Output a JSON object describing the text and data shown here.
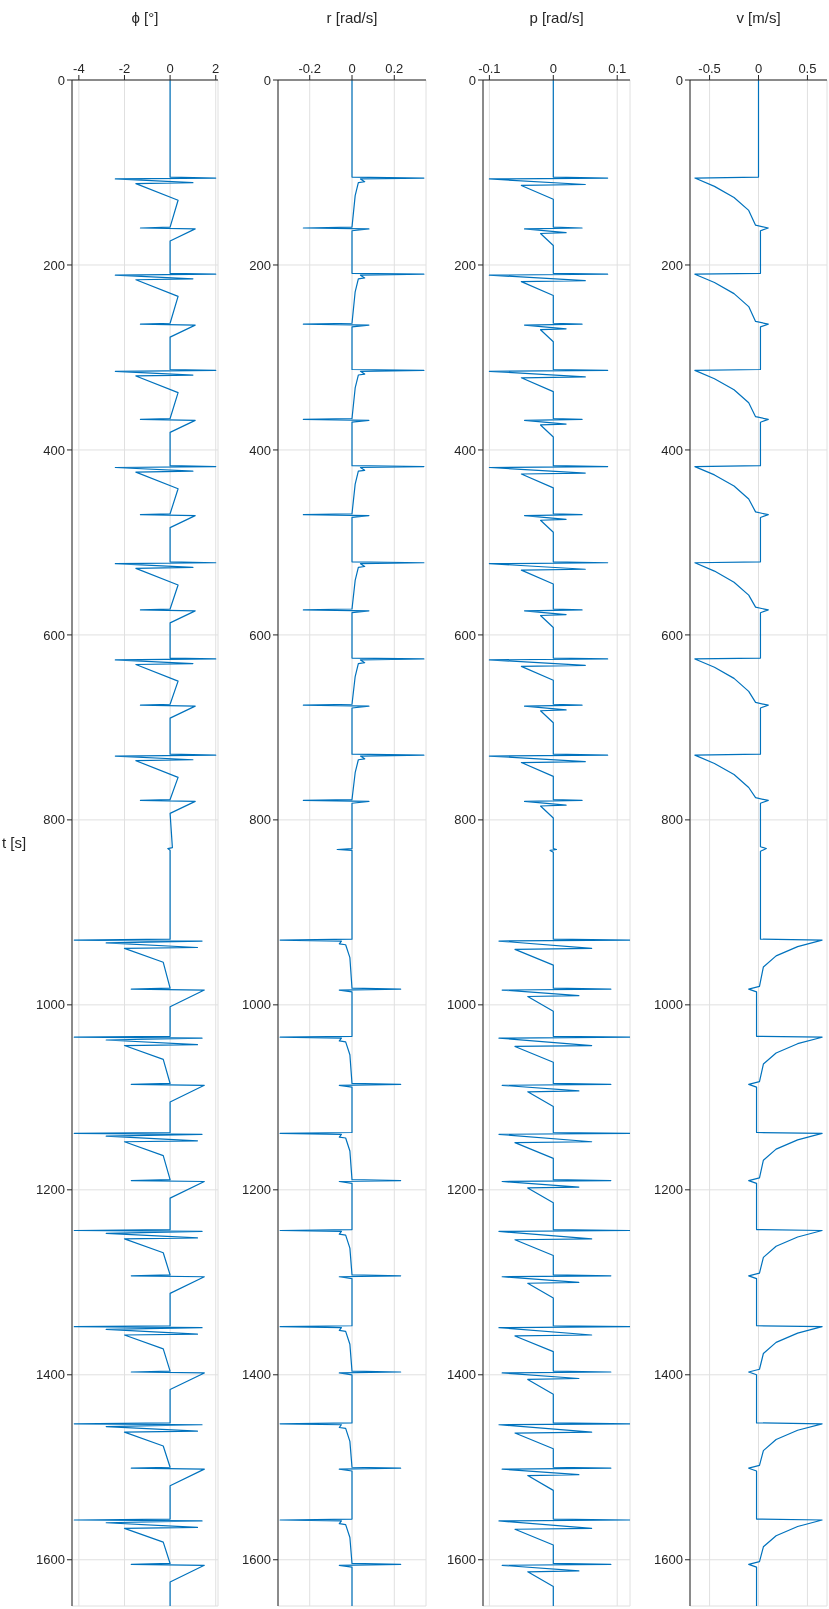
{
  "chart_data": [
    {
      "type": "line",
      "xlabel": "v [m/s]",
      "ylim": [
        1650,
        0
      ],
      "yticks": [
        0,
        200,
        400,
        600,
        800,
        1000,
        1200,
        1400,
        1600
      ],
      "xlim": [
        -0.7,
        0.7
      ],
      "xticks": [
        -0.5,
        0,
        0.5
      ],
      "grid": true,
      "series": [
        {
          "color": "#0072bd",
          "values": [
            0,
            105,
            106,
            115,
            127,
            141,
            157,
            160,
            163,
            209,
            210,
            219,
            231,
            245,
            261,
            264,
            267,
            313,
            314,
            323,
            335,
            349,
            364,
            367,
            370,
            417,
            418,
            427,
            439,
            453,
            467,
            470,
            473,
            521,
            522,
            531,
            543,
            557,
            570,
            573,
            576,
            625,
            626,
            635,
            647,
            661,
            673,
            676,
            679,
            729,
            730,
            739,
            751,
            765,
            776,
            779,
            782,
            829,
            831,
            834,
            929,
            930,
            937,
            947,
            959,
            980,
            983,
            986,
            1034,
            1035,
            1042,
            1052,
            1064,
            1083,
            1086,
            1089,
            1138,
            1139,
            1146,
            1156,
            1168,
            1187,
            1190,
            1193,
            1243,
            1244,
            1251,
            1261,
            1273,
            1290,
            1293,
            1296,
            1347,
            1348,
            1355,
            1365,
            1377,
            1394,
            1397,
            1400,
            1452,
            1453,
            1460,
            1470,
            1482,
            1498,
            1501,
            1504,
            1556,
            1557,
            1564,
            1574,
            1586,
            1602,
            1605,
            1608,
            1650
          ],
          "x": [
            0,
            0,
            -0.65,
            -0.45,
            -0.25,
            -0.1,
            -0.03,
            0.1,
            0.02,
            0.02,
            -0.65,
            -0.45,
            -0.25,
            -0.1,
            -0.03,
            0.1,
            0.02,
            0.02,
            -0.65,
            -0.45,
            -0.25,
            -0.1,
            -0.03,
            0.1,
            0.02,
            0.02,
            -0.65,
            -0.45,
            -0.25,
            -0.1,
            -0.03,
            0.1,
            0.02,
            0.02,
            -0.65,
            -0.45,
            -0.25,
            -0.1,
            -0.03,
            0.1,
            0.02,
            0.02,
            -0.65,
            -0.45,
            -0.25,
            -0.1,
            -0.03,
            0.1,
            0.02,
            0.02,
            -0.65,
            -0.45,
            -0.25,
            -0.1,
            -0.03,
            0.1,
            0.02,
            0.02,
            0.08,
            0.02,
            0.02,
            0.65,
            0.4,
            0.18,
            0.05,
            0.01,
            -0.1,
            -0.02,
            -0.02,
            0.65,
            0.4,
            0.18,
            0.05,
            0.01,
            -0.1,
            -0.02,
            -0.02,
            0.65,
            0.4,
            0.18,
            0.05,
            0.01,
            -0.1,
            -0.02,
            -0.02,
            0.65,
            0.4,
            0.18,
            0.05,
            0.01,
            -0.1,
            -0.02,
            -0.02,
            0.65,
            0.4,
            0.18,
            0.05,
            0.01,
            -0.1,
            -0.02,
            -0.02,
            0.65,
            0.4,
            0.18,
            0.05,
            0.01,
            -0.1,
            -0.02,
            -0.02,
            0.65,
            0.4,
            0.18,
            0.05,
            0.01,
            -0.1,
            -0.02,
            -0.02
          ]
        }
      ]
    },
    {
      "type": "line",
      "xlabel": "p [rad/s]",
      "ylim": [
        1650,
        0
      ],
      "yticks": [
        0,
        200,
        400,
        600,
        800,
        1000,
        1200,
        1400,
        1600
      ],
      "xlim": [
        -0.11,
        0.12
      ],
      "xticks": [
        -0.1,
        0,
        0.1
      ],
      "grid": true,
      "series": [
        {
          "color": "#0072bd",
          "values": [
            0,
            105,
            106,
            107,
            113,
            114,
            129,
            159,
            160,
            161,
            165,
            166,
            179,
            209,
            210,
            211,
            217,
            218,
            233,
            263,
            264,
            265,
            269,
            270,
            283,
            313,
            314,
            315,
            321,
            322,
            337,
            366,
            367,
            368,
            372,
            373,
            386,
            417,
            418,
            419,
            425,
            426,
            441,
            469,
            470,
            471,
            475,
            476,
            489,
            521,
            522,
            523,
            529,
            530,
            545,
            572,
            573,
            574,
            578,
            579,
            592,
            625,
            626,
            627,
            633,
            634,
            649,
            675,
            676,
            677,
            681,
            682,
            695,
            729,
            730,
            731,
            737,
            738,
            753,
            778,
            779,
            780,
            784,
            785,
            798,
            831,
            832,
            833,
            835,
            929,
            930,
            931,
            939,
            940,
            957,
            982,
            983,
            984,
            990,
            991,
            1007,
            1034,
            1035,
            1036,
            1044,
            1045,
            1062,
            1085,
            1086,
            1087,
            1093,
            1094,
            1110,
            1138,
            1139,
            1140,
            1148,
            1149,
            1166,
            1189,
            1190,
            1191,
            1197,
            1198,
            1214,
            1243,
            1244,
            1245,
            1253,
            1254,
            1271,
            1292,
            1293,
            1294,
            1300,
            1301,
            1317,
            1347,
            1348,
            1349,
            1357,
            1358,
            1375,
            1396,
            1397,
            1398,
            1404,
            1405,
            1421,
            1452,
            1453,
            1454,
            1462,
            1463,
            1480,
            1500,
            1501,
            1502,
            1508,
            1509,
            1525,
            1556,
            1557,
            1558,
            1566,
            1567,
            1584,
            1604,
            1605,
            1606,
            1612,
            1613,
            1629,
            1650
          ],
          "x": [
            0,
            0,
            0.085,
            -0.1,
            0.05,
            -0.05,
            0,
            0,
            0.045,
            -0.045,
            0.02,
            -0.02,
            0,
            0,
            0.085,
            -0.1,
            0.05,
            -0.05,
            0,
            0,
            0.045,
            -0.045,
            0.02,
            -0.02,
            0,
            0,
            0.085,
            -0.1,
            0.05,
            -0.05,
            0,
            0,
            0.045,
            -0.045,
            0.02,
            -0.02,
            0,
            0,
            0.085,
            -0.1,
            0.05,
            -0.05,
            0,
            0,
            0.045,
            -0.045,
            0.02,
            -0.02,
            0,
            0,
            0.085,
            -0.1,
            0.05,
            -0.05,
            0,
            0,
            0.045,
            -0.045,
            0.02,
            -0.02,
            0,
            0,
            0.085,
            -0.1,
            0.05,
            -0.05,
            0,
            0,
            0.045,
            -0.045,
            0.02,
            -0.02,
            0,
            0,
            0.085,
            -0.1,
            0.05,
            -0.05,
            0,
            0,
            0.045,
            -0.045,
            0.02,
            -0.02,
            0,
            0,
            0.005,
            -0.005,
            0,
            0,
            0.12,
            -0.085,
            0.06,
            -0.06,
            0,
            0,
            0.09,
            -0.08,
            0.04,
            -0.04,
            0,
            0,
            0.12,
            -0.085,
            0.06,
            -0.06,
            0,
            0,
            0.09,
            -0.08,
            0.04,
            -0.04,
            0,
            0,
            0.12,
            -0.085,
            0.06,
            -0.06,
            0,
            0,
            0.09,
            -0.08,
            0.04,
            -0.04,
            0,
            0,
            0.12,
            -0.085,
            0.06,
            -0.06,
            0,
            0,
            0.09,
            -0.08,
            0.04,
            -0.04,
            0,
            0,
            0.12,
            -0.085,
            0.06,
            -0.06,
            0,
            0,
            0.09,
            -0.08,
            0.04,
            -0.04,
            0,
            0,
            0.12,
            -0.085,
            0.06,
            -0.06,
            0,
            0,
            0.09,
            -0.08,
            0.04,
            -0.04,
            0,
            0,
            0.12,
            -0.085,
            0.06,
            -0.06,
            0,
            0,
            0.09,
            -0.08,
            0.04,
            -0.04,
            0,
            0
          ]
        }
      ]
    },
    {
      "type": "line",
      "xlabel": "r [rad/s]",
      "ylim": [
        1650,
        0
      ],
      "yticks": [
        0,
        200,
        400,
        600,
        800,
        1000,
        1200,
        1400,
        1600
      ],
      "xlim": [
        -0.35,
        0.35
      ],
      "xticks": [
        -0.2,
        0,
        0.2
      ],
      "grid": true,
      "series": [
        {
          "color": "#0072bd",
          "values": [
            0,
            105,
            106,
            107,
            110,
            111,
            125,
            159,
            160,
            161,
            163,
            209,
            210,
            211,
            214,
            215,
            229,
            263,
            264,
            265,
            267,
            313,
            314,
            315,
            318,
            319,
            333,
            366,
            367,
            368,
            370,
            417,
            418,
            419,
            422,
            423,
            437,
            469,
            470,
            471,
            473,
            521,
            522,
            523,
            526,
            527,
            541,
            572,
            573,
            574,
            576,
            625,
            626,
            627,
            630,
            631,
            645,
            675,
            676,
            677,
            679,
            729,
            730,
            731,
            734,
            735,
            749,
            778,
            779,
            780,
            782,
            831,
            832,
            833,
            929,
            930,
            931,
            934,
            935,
            949,
            982,
            983,
            984,
            986,
            1034,
            1035,
            1036,
            1039,
            1040,
            1054,
            1085,
            1086,
            1087,
            1089,
            1138,
            1139,
            1140,
            1143,
            1144,
            1158,
            1189,
            1190,
            1191,
            1193,
            1243,
            1244,
            1245,
            1248,
            1249,
            1263,
            1292,
            1293,
            1294,
            1296,
            1347,
            1348,
            1349,
            1352,
            1353,
            1367,
            1396,
            1397,
            1398,
            1400,
            1452,
            1453,
            1454,
            1457,
            1458,
            1472,
            1500,
            1501,
            1502,
            1504,
            1556,
            1557,
            1558,
            1561,
            1562,
            1576,
            1604,
            1605,
            1606,
            1608,
            1650
          ],
          "x": [
            0,
            0,
            0.34,
            0.04,
            0.06,
            0.03,
            0.015,
            0,
            -0.23,
            0.08,
            0,
            0,
            0.34,
            0.04,
            0.06,
            0.03,
            0.015,
            0,
            -0.23,
            0.08,
            0,
            0,
            0.34,
            0.04,
            0.06,
            0.03,
            0.015,
            0,
            -0.23,
            0.08,
            0,
            0,
            0.34,
            0.04,
            0.06,
            0.03,
            0.015,
            0,
            -0.23,
            0.08,
            0,
            0,
            0.34,
            0.04,
            0.06,
            0.03,
            0.015,
            0,
            -0.23,
            0.08,
            0,
            0,
            0.34,
            0.04,
            0.06,
            0.03,
            0.015,
            0,
            -0.23,
            0.08,
            0,
            0,
            0.34,
            0.04,
            0.06,
            0.03,
            0.015,
            0,
            -0.23,
            0.08,
            0,
            0,
            -0.07,
            0,
            0,
            -0.34,
            -0.05,
            -0.06,
            -0.03,
            -0.01,
            0,
            0.23,
            -0.06,
            0,
            0,
            -0.34,
            -0.05,
            -0.06,
            -0.03,
            -0.01,
            0,
            0.23,
            -0.06,
            0,
            0,
            -0.34,
            -0.05,
            -0.06,
            -0.03,
            -0.01,
            0,
            0.23,
            -0.06,
            0,
            0,
            -0.34,
            -0.05,
            -0.06,
            -0.03,
            -0.01,
            0,
            0.23,
            -0.06,
            0,
            0,
            -0.34,
            -0.05,
            -0.06,
            -0.03,
            -0.01,
            0,
            0.23,
            -0.06,
            0,
            0,
            -0.34,
            -0.05,
            -0.06,
            -0.03,
            -0.01,
            0,
            0.23,
            -0.06,
            0,
            0,
            -0.34,
            -0.05,
            -0.06,
            -0.03,
            -0.01,
            0,
            0.23,
            -0.06,
            0,
            0
          ]
        }
      ]
    },
    {
      "type": "line",
      "xlabel": "ϕ [°]",
      "ylabel": "t [s]",
      "ylim": [
        1650,
        0
      ],
      "yticks": [
        0,
        200,
        400,
        600,
        800,
        1000,
        1200,
        1400,
        1600
      ],
      "xlim": [
        -4.3,
        2.1
      ],
      "xticks": [
        -4,
        -2,
        0,
        2
      ],
      "grid": true,
      "series": [
        {
          "color": "#0072bd",
          "values": [
            0,
            105,
            106,
            107,
            111,
            112,
            130,
            159,
            160,
            161,
            174,
            209,
            210,
            211,
            215,
            216,
            234,
            263,
            264,
            265,
            278,
            313,
            314,
            315,
            319,
            320,
            338,
            366,
            367,
            368,
            381,
            417,
            418,
            419,
            423,
            424,
            442,
            469,
            470,
            471,
            484,
            521,
            522,
            523,
            527,
            528,
            546,
            572,
            573,
            574,
            587,
            625,
            626,
            627,
            631,
            632,
            650,
            675,
            676,
            677,
            690,
            729,
            730,
            731,
            735,
            736,
            754,
            778,
            779,
            780,
            793,
            830,
            831,
            833,
            929,
            930,
            931,
            933,
            938,
            939,
            954,
            982,
            983,
            984,
            1002,
            1034,
            1035,
            1036,
            1038,
            1043,
            1044,
            1059,
            1085,
            1086,
            1087,
            1105,
            1138,
            1139,
            1140,
            1142,
            1147,
            1148,
            1163,
            1189,
            1190,
            1191,
            1209,
            1243,
            1244,
            1245,
            1247,
            1252,
            1253,
            1268,
            1292,
            1293,
            1294,
            1312,
            1347,
            1348,
            1349,
            1351,
            1356,
            1357,
            1372,
            1396,
            1397,
            1398,
            1416,
            1452,
            1453,
            1454,
            1456,
            1461,
            1462,
            1477,
            1500,
            1501,
            1502,
            1520,
            1556,
            1557,
            1558,
            1560,
            1565,
            1566,
            1581,
            1604,
            1605,
            1606,
            1624,
            1650
          ],
          "x": [
            0,
            0,
            2.0,
            -2.4,
            1.0,
            -1.5,
            0.35,
            0,
            -1.3,
            1.1,
            0,
            0,
            2.0,
            -2.4,
            1.0,
            -1.5,
            0.35,
            0,
            -1.3,
            1.1,
            0,
            0,
            2.0,
            -2.4,
            1.0,
            -1.5,
            0.35,
            0,
            -1.3,
            1.1,
            0,
            0,
            2.0,
            -2.4,
            1.0,
            -1.5,
            0.35,
            0,
            -1.3,
            1.1,
            0,
            0,
            2.0,
            -2.4,
            1.0,
            -1.5,
            0.35,
            0,
            -1.3,
            1.1,
            0,
            0,
            2.0,
            -2.4,
            1.0,
            -1.5,
            0.35,
            0,
            -1.3,
            1.1,
            0,
            0,
            2.0,
            -2.4,
            1.0,
            -1.5,
            0.35,
            0,
            -1.3,
            1.1,
            0,
            0.1,
            -0.1,
            0,
            0,
            -4.2,
            1.4,
            -2.8,
            1.2,
            -2.0,
            -0.3,
            0,
            -1.7,
            1.5,
            0,
            0,
            -4.2,
            1.4,
            -2.8,
            1.2,
            -2.0,
            -0.3,
            0,
            -1.7,
            1.5,
            0,
            0,
            -4.2,
            1.4,
            -2.8,
            1.2,
            -2.0,
            -0.3,
            0,
            -1.7,
            1.5,
            0,
            0,
            -4.2,
            1.4,
            -2.8,
            1.2,
            -2.0,
            -0.3,
            0,
            -1.7,
            1.5,
            0,
            0,
            -4.2,
            1.4,
            -2.8,
            1.2,
            -2.0,
            -0.3,
            0,
            -1.7,
            1.5,
            0,
            0,
            -4.2,
            1.4,
            -2.8,
            1.2,
            -2.0,
            -0.3,
            0,
            -1.7,
            1.5,
            0,
            0,
            -4.2,
            1.4,
            -2.8,
            1.2,
            -2.0,
            -0.3,
            0,
            -1.7,
            1.5,
            0,
            0
          ]
        }
      ]
    }
  ]
}
